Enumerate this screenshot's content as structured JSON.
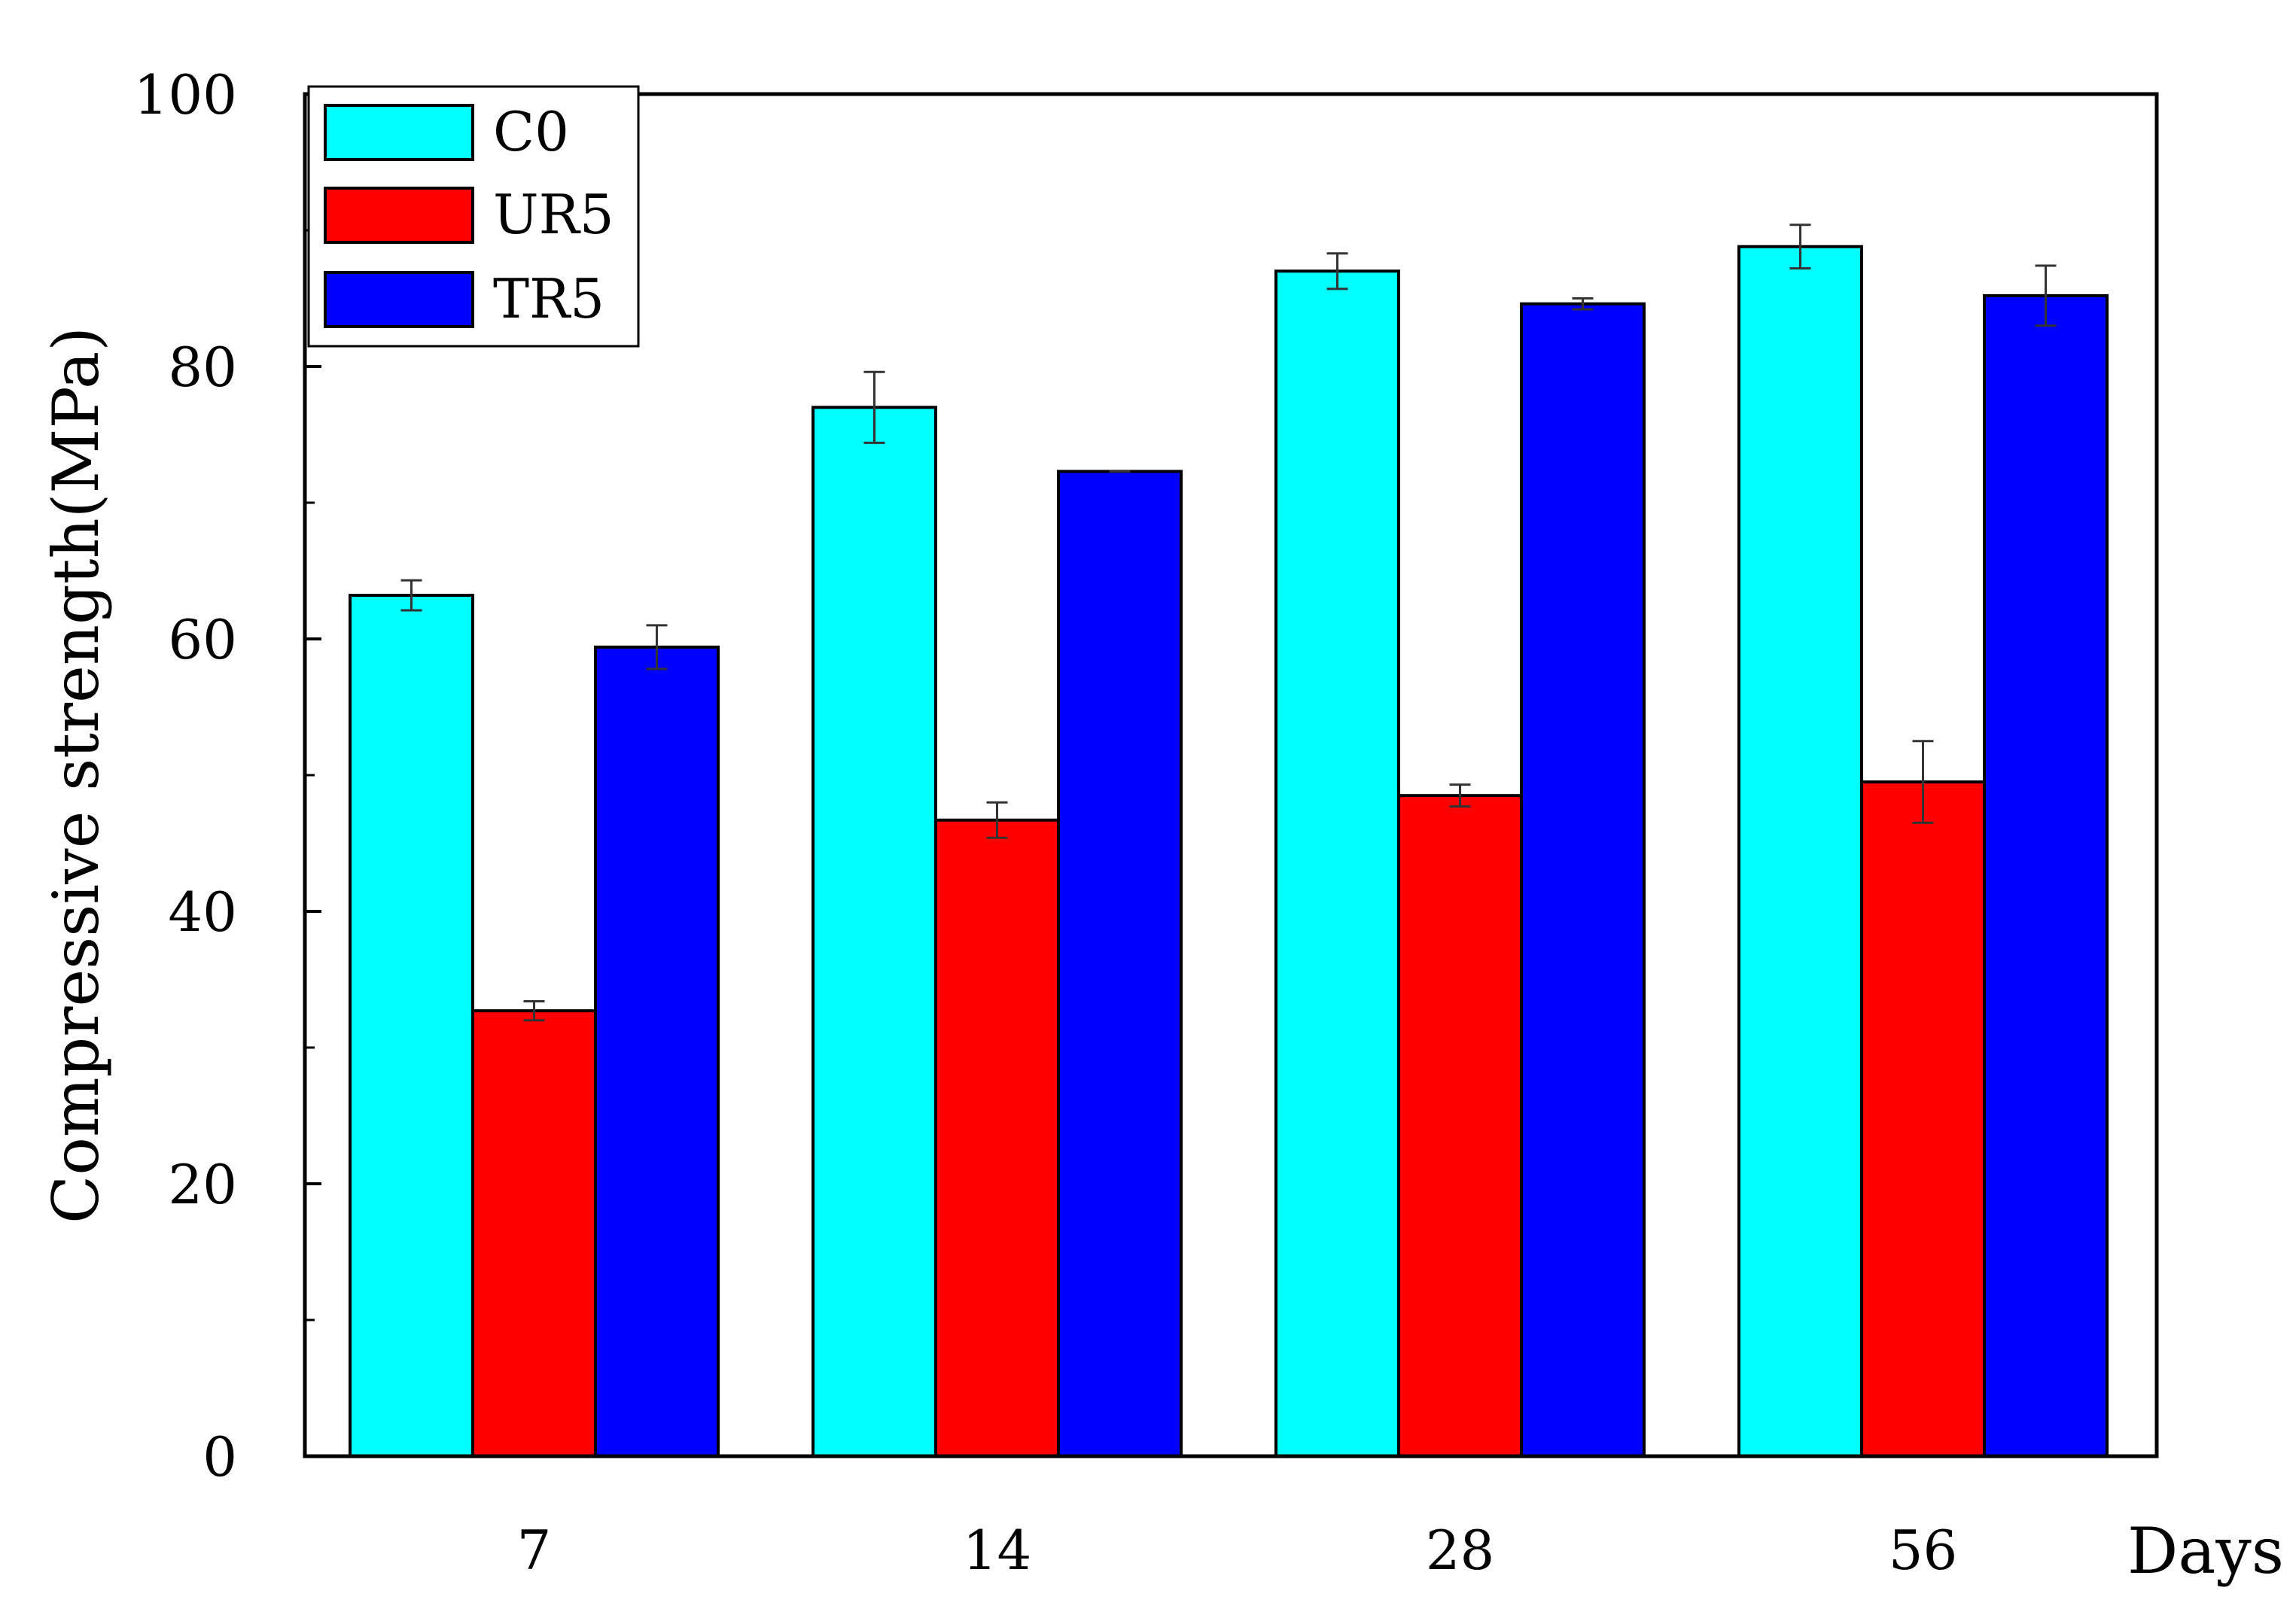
{
  "chart_data": {
    "type": "bar",
    "categories": [
      "7",
      "14",
      "28",
      "56"
    ],
    "series": [
      {
        "name": "C0",
        "color": "#00ffff",
        "values": [
          63.2,
          77.0,
          87.0,
          88.8
        ],
        "errors": [
          1.1,
          2.6,
          1.3,
          1.6
        ]
      },
      {
        "name": "UR5",
        "color": "#ff0000",
        "values": [
          32.7,
          46.7,
          48.5,
          49.5
        ],
        "errors": [
          0.7,
          1.3,
          0.8,
          3.0
        ]
      },
      {
        "name": "TR5",
        "color": "#0000ff",
        "values": [
          59.4,
          72.3,
          84.6,
          85.2
        ],
        "errors": [
          1.6,
          0.0,
          0.4,
          2.2
        ]
      }
    ],
    "xlabel": "Days",
    "ylabel": "Compressive strength(MPa)",
    "ylim": [
      0,
      100
    ],
    "yticks": [
      "0",
      "20",
      "40",
      "60",
      "80",
      "100"
    ],
    "minor_yticks": [
      10,
      30,
      50,
      70,
      90
    ],
    "grid": false,
    "legend_position": "top-left"
  }
}
